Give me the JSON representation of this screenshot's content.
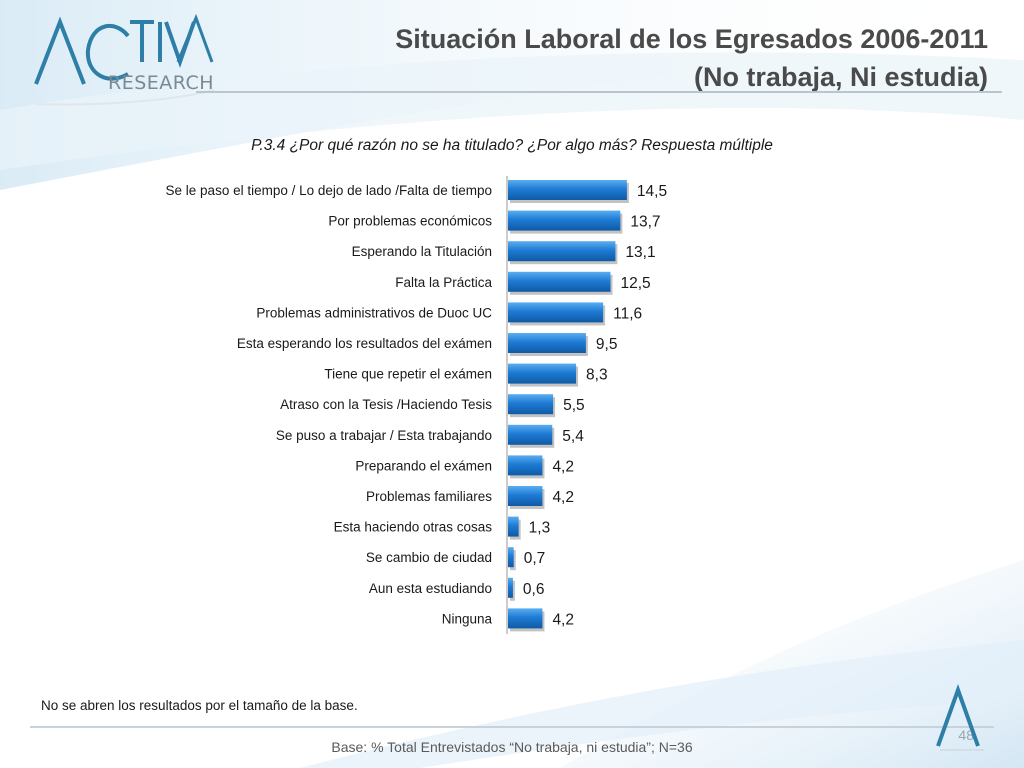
{
  "brand": {
    "logo_text": "ACTIVA",
    "logo_subtext": "RESEARCH",
    "accent_color": "#1e7bd4",
    "logo_color": "#2e7fa8"
  },
  "title": {
    "line1": "Situación Laboral de los Egresados 2006-2011",
    "line2": "(No trabaja, Ni estudia)"
  },
  "chart_data": {
    "type": "bar",
    "orientation": "horizontal",
    "title": "P.3.4 ¿Por qué razón no se ha titulado? ¿Por algo más? Respuesta múltiple",
    "xlabel": "",
    "ylabel": "",
    "xlim": [
      0,
      16
    ],
    "grid": false,
    "bar_color": "#1e7bd4",
    "categories": [
      "Se le paso el tiempo / Lo dejo de lado /Falta de tiempo",
      "Por problemas económicos",
      "Esperando la Titulación",
      "Falta la Práctica",
      "Problemas administrativos de Duoc UC",
      "Esta esperando los resultados del exámen",
      "Tiene que repetir el exámen",
      "Atraso con la Tesis /Haciendo Tesis",
      "Se puso a trabajar / Esta trabajando",
      "Preparando el exámen",
      "Problemas familiares",
      "Esta haciendo otras cosas",
      "Se cambio de ciudad",
      "Aun esta estudiando",
      "Ninguna"
    ],
    "values": [
      14.5,
      13.7,
      13.1,
      12.5,
      11.6,
      9.5,
      8.3,
      5.5,
      5.4,
      4.2,
      4.2,
      1.3,
      0.7,
      0.6,
      4.2
    ],
    "value_labels": [
      "14,5",
      "13,7",
      "13,1",
      "12,5",
      "11,6",
      "9,5",
      "8,3",
      "5,5",
      "5,4",
      "4,2",
      "4,2",
      "1,3",
      "0,7",
      "0,6",
      "4,2"
    ]
  },
  "note": "No se abren los resultados por el tamaño de la base.",
  "base": "Base: % Total Entrevistados “No trabaja, ni estudia”; N=36",
  "page_number": "48"
}
